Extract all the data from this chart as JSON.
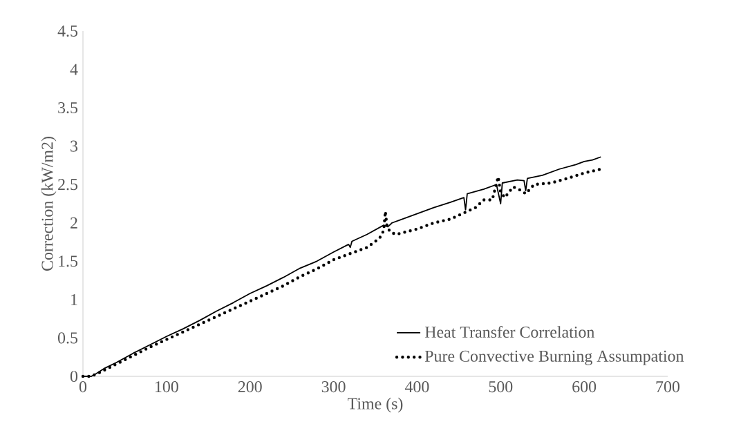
{
  "chart_data": {
    "type": "line",
    "xlabel": "Time (s)",
    "ylabel": "Correction (kW/m2)",
    "xlim": [
      0,
      700
    ],
    "xticks": [
      0,
      100,
      200,
      300,
      400,
      500,
      600,
      700
    ],
    "ylim": [
      0,
      4.5
    ],
    "yticks": [
      0,
      0.5,
      1,
      1.5,
      2,
      2.5,
      3,
      3.5,
      4,
      4.5
    ],
    "grid": false,
    "legend": "bottom right",
    "marker": "none",
    "series": [
      {
        "name": "Heat Transfer Correlation",
        "color": "#000000",
        "line_style": "solid",
        "x": [
          0,
          5,
          10,
          15,
          25,
          40,
          60,
          80,
          100,
          120,
          140,
          160,
          180,
          200,
          220,
          240,
          260,
          280,
          300,
          318,
          320,
          322,
          340,
          360,
          365,
          370,
          380,
          400,
          420,
          440,
          456,
          458,
          460,
          480,
          495,
          500,
          502,
          520,
          528,
          530,
          532,
          550,
          570,
          590,
          600,
          610,
          620
        ],
        "values": [
          0,
          0,
          0,
          0.03,
          0.1,
          0.18,
          0.3,
          0.41,
          0.52,
          0.62,
          0.73,
          0.85,
          0.96,
          1.08,
          1.18,
          1.29,
          1.41,
          1.5,
          1.62,
          1.72,
          1.68,
          1.76,
          1.85,
          1.97,
          1.95,
          2.0,
          2.04,
          2.12,
          2.2,
          2.27,
          2.33,
          2.17,
          2.38,
          2.44,
          2.5,
          2.25,
          2.52,
          2.56,
          2.55,
          2.42,
          2.58,
          2.62,
          2.7,
          2.76,
          2.8,
          2.82,
          2.86
        ]
      },
      {
        "name": "Pure Convective Burning Assumpation",
        "color": "#000000",
        "line_style": "dotted",
        "x": [
          0,
          10,
          20,
          40,
          60,
          80,
          100,
          120,
          140,
          160,
          180,
          200,
          220,
          240,
          260,
          280,
          300,
          320,
          340,
          355,
          360,
          362,
          364,
          368,
          375,
          400,
          420,
          440,
          460,
          470,
          480,
          490,
          497,
          500,
          505,
          515,
          525,
          530,
          540,
          560,
          580,
          600,
          620
        ],
        "values": [
          0,
          0,
          0.05,
          0.16,
          0.27,
          0.38,
          0.48,
          0.58,
          0.68,
          0.78,
          0.88,
          0.98,
          1.08,
          1.18,
          1.3,
          1.4,
          1.52,
          1.6,
          1.68,
          1.8,
          1.9,
          2.15,
          1.95,
          1.88,
          1.85,
          1.92,
          2.0,
          2.05,
          2.15,
          2.2,
          2.3,
          2.3,
          2.6,
          2.4,
          2.33,
          2.47,
          2.42,
          2.38,
          2.5,
          2.52,
          2.58,
          2.65,
          2.7
        ]
      }
    ]
  }
}
